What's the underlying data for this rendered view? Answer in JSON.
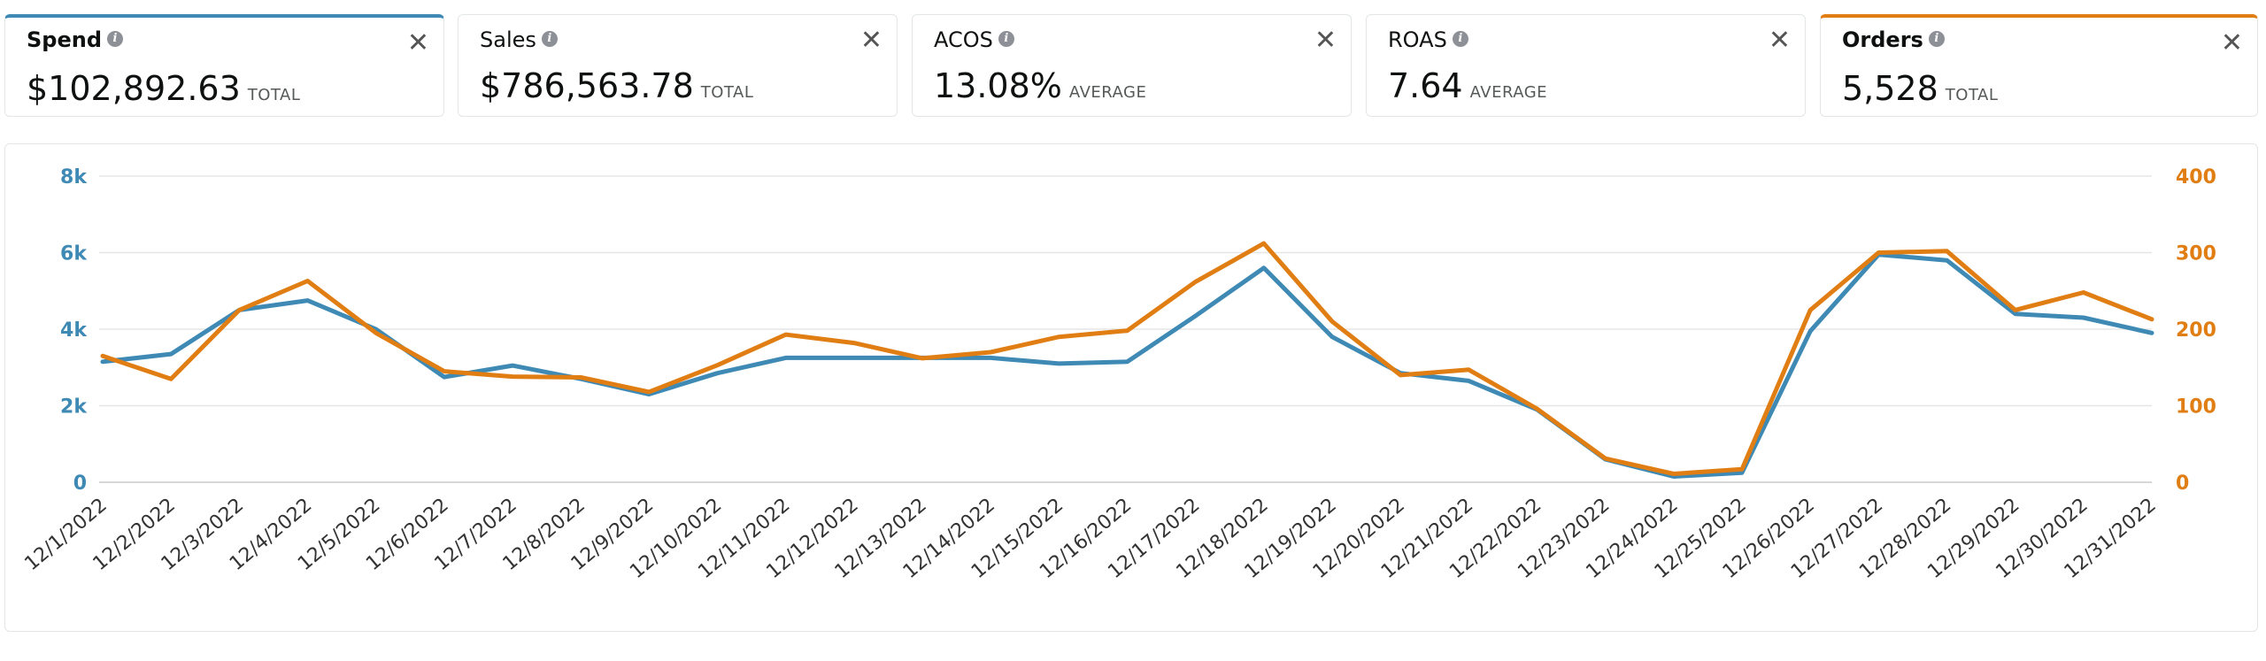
{
  "cards": [
    {
      "label": "Spend",
      "value": "$102,892.63",
      "suffix": "TOTAL",
      "selected": "blue"
    },
    {
      "label": "Sales",
      "value": "$786,563.78",
      "suffix": "TOTAL",
      "selected": ""
    },
    {
      "label": "ACOS",
      "value": "13.08%",
      "suffix": "AVERAGE",
      "selected": ""
    },
    {
      "label": "ROAS",
      "value": "7.64",
      "suffix": "AVERAGE",
      "selected": ""
    },
    {
      "label": "Orders",
      "value": "5,528",
      "suffix": "TOTAL",
      "selected": "orange"
    }
  ],
  "icons": {
    "info": "info-icon",
    "close": "close-icon",
    "close_glyph": "✕",
    "info_glyph": "i"
  },
  "colors": {
    "spend": "#3e8ab5",
    "orders": "#e07d13",
    "grid": "#e6e6e6"
  },
  "chart_data": {
    "type": "line",
    "categories": [
      "12/1/2022",
      "12/2/2022",
      "12/3/2022",
      "12/4/2022",
      "12/5/2022",
      "12/6/2022",
      "12/7/2022",
      "12/8/2022",
      "12/9/2022",
      "12/10/2022",
      "12/11/2022",
      "12/12/2022",
      "12/13/2022",
      "12/14/2022",
      "12/15/2022",
      "12/16/2022",
      "12/17/2022",
      "12/18/2022",
      "12/19/2022",
      "12/20/2022",
      "12/21/2022",
      "12/22/2022",
      "12/23/2022",
      "12/24/2022",
      "12/25/2022",
      "12/26/2022",
      "12/27/2022",
      "12/28/2022",
      "12/29/2022",
      "12/30/2022",
      "12/31/2022"
    ],
    "series": [
      {
        "name": "Spend",
        "axis": "left",
        "color": "#3e8ab5",
        "values": [
          3150,
          3350,
          4500,
          4750,
          4000,
          2750,
          3050,
          2700,
          2300,
          2850,
          3250,
          3250,
          3250,
          3250,
          3100,
          3150,
          4350,
          5600,
          3800,
          2850,
          2650,
          1900,
          600,
          150,
          250,
          3950,
          5950,
          5800,
          4400,
          4300,
          3900
        ]
      },
      {
        "name": "Orders",
        "axis": "right",
        "color": "#e07d13",
        "values": [
          165,
          135,
          225,
          263,
          195,
          145,
          138,
          137,
          118,
          153,
          193,
          182,
          162,
          170,
          190,
          198,
          262,
          312,
          210,
          140,
          147,
          96,
          31,
          11,
          17,
          225,
          300,
          302,
          225,
          248,
          213
        ]
      }
    ],
    "left_axis": {
      "ylim": [
        0,
        8000
      ],
      "ticks": [
        "0",
        "2k",
        "4k",
        "6k",
        "8k"
      ],
      "color": "#3e8ab5"
    },
    "right_axis": {
      "ylim": [
        0,
        400
      ],
      "ticks": [
        "0",
        "100",
        "200",
        "300",
        "400"
      ],
      "color": "#e07d13"
    },
    "grid": true
  }
}
